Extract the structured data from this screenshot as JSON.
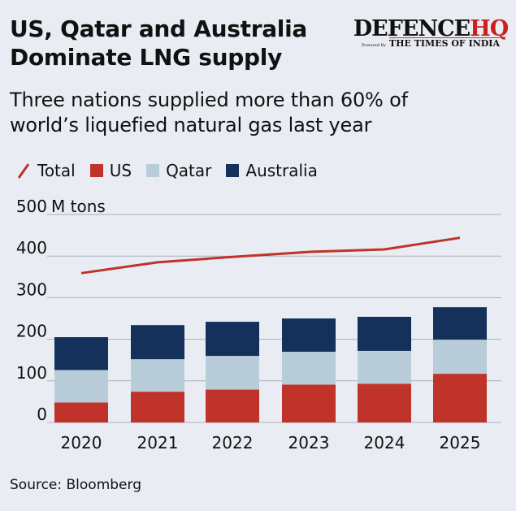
{
  "header": {
    "title_line1": "US, Qatar and Australia",
    "title_line2": "Dominate LNG supply",
    "subtitle_line1": "Three nations supplied more than 60% of",
    "subtitle_line2": "world’s liquefied natural gas last year"
  },
  "logo": {
    "main": "DEFENCE",
    "accent": "HQ",
    "powered": "Powered By",
    "brand": "THE TIMES OF INDIA"
  },
  "source": "Source: Bloomberg",
  "chart_data": {
    "type": "bar",
    "stacked": true,
    "categories": [
      "2020",
      "2021",
      "2022",
      "2023",
      "2024",
      "2025"
    ],
    "series": [
      {
        "name": "US",
        "color": "#c0332a",
        "values": [
          48,
          74,
          79,
          91,
          93,
          117
        ]
      },
      {
        "name": "Qatar",
        "color": "#b8cdd9",
        "values": [
          78,
          78,
          81,
          79,
          79,
          82
        ]
      },
      {
        "name": "Australia",
        "color": "#13315a",
        "values": [
          79,
          82,
          82,
          80,
          82,
          78
        ]
      }
    ],
    "line_series": {
      "name": "Total",
      "color": "#c0332a",
      "values": [
        359,
        385,
        398,
        410,
        416,
        444
      ]
    },
    "ylabel": "M tons",
    "ylim": [
      0,
      500
    ],
    "yticks": [
      "0",
      "100",
      "200",
      "300",
      "400",
      "500"
    ],
    "grid": true,
    "legend": "top-left",
    "legend_labels": [
      "Total",
      "US",
      "Qatar",
      "Australia"
    ]
  }
}
